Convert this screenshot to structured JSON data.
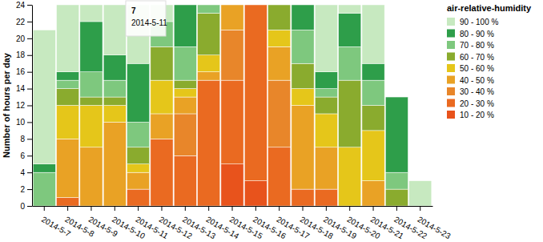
{
  "chart_data": {
    "type": "bar",
    "stacked": true,
    "grid": false,
    "legend": "top-right",
    "legend_title": "air-relative-humidity",
    "y_label": "Number of hours per day",
    "annotations": [
      {
        "text": "7"
      },
      {
        "text": "2014-5-11"
      }
    ],
    "categories": [
      "2014-5-7",
      "2014-5-8",
      "2014-5-9",
      "2014-5-10",
      "2014-5-11",
      "2014-5-12",
      "2014-5-13",
      "2014-5-14",
      "2014-5-15",
      "2014-5-16",
      "2014-5-17",
      "2014-5-18",
      "2014-5-19",
      "2014-5-20",
      "2014-5-21",
      "2014-5-22",
      "2014-5-23"
    ],
    "ylim": [
      0,
      24
    ],
    "yticks": [
      0,
      2,
      4,
      6,
      8,
      10,
      12,
      14,
      16,
      18,
      20,
      22,
      24
    ],
    "series": [
      {
        "name": "10 - 20 %",
        "color": "#e8531c",
        "values": [
          0,
          0,
          0,
          0,
          0,
          0,
          0,
          0,
          5,
          3,
          0,
          0,
          0,
          0,
          0,
          0,
          0
        ]
      },
      {
        "name": "20 - 30 %",
        "color": "#ea6a21",
        "values": [
          0,
          1,
          0,
          0,
          2,
          8,
          6,
          15,
          10,
          21,
          7,
          2,
          2,
          0,
          0,
          0,
          0
        ]
      },
      {
        "name": "30 - 40 %",
        "color": "#e8862a",
        "values": [
          0,
          0,
          0,
          0,
          0,
          0,
          5,
          0,
          6,
          0,
          8,
          0,
          0,
          0,
          0,
          0,
          0
        ]
      },
      {
        "name": "40 - 50 %",
        "color": "#e9a225",
        "values": [
          0,
          7,
          7,
          10,
          2,
          3,
          2,
          1,
          3,
          0,
          4,
          10,
          5,
          0,
          3,
          0,
          0
        ]
      },
      {
        "name": "50 - 60 %",
        "color": "#e5c61a",
        "values": [
          0,
          4,
          5,
          2,
          1,
          4,
          1,
          2,
          0,
          0,
          2,
          2,
          4,
          7,
          6,
          0,
          0
        ]
      },
      {
        "name": "60 - 70 %",
        "color": "#8aab2e",
        "values": [
          0,
          2,
          1,
          1,
          2,
          4,
          1,
          5,
          0,
          0,
          3,
          3,
          2,
          8,
          3,
          2,
          0
        ]
      },
      {
        "name": "70 - 80 %",
        "color": "#7ec87e",
        "values": [
          4,
          1,
          3,
          2,
          3,
          3,
          4,
          1,
          0,
          0,
          0,
          4,
          1,
          4,
          3,
          2,
          0
        ]
      },
      {
        "name": "80 - 90 %",
        "color": "#2e9e4a",
        "values": [
          1,
          1,
          6,
          3,
          7,
          0,
          5,
          0,
          0,
          0,
          0,
          3,
          2,
          4,
          2,
          9,
          0
        ]
      },
      {
        "name": "90 - 100 %",
        "color": "#c7e9c0",
        "values": [
          16,
          8,
          2,
          6,
          7,
          2,
          0,
          0,
          0,
          0,
          0,
          0,
          8,
          1,
          7,
          0,
          3
        ]
      }
    ]
  }
}
